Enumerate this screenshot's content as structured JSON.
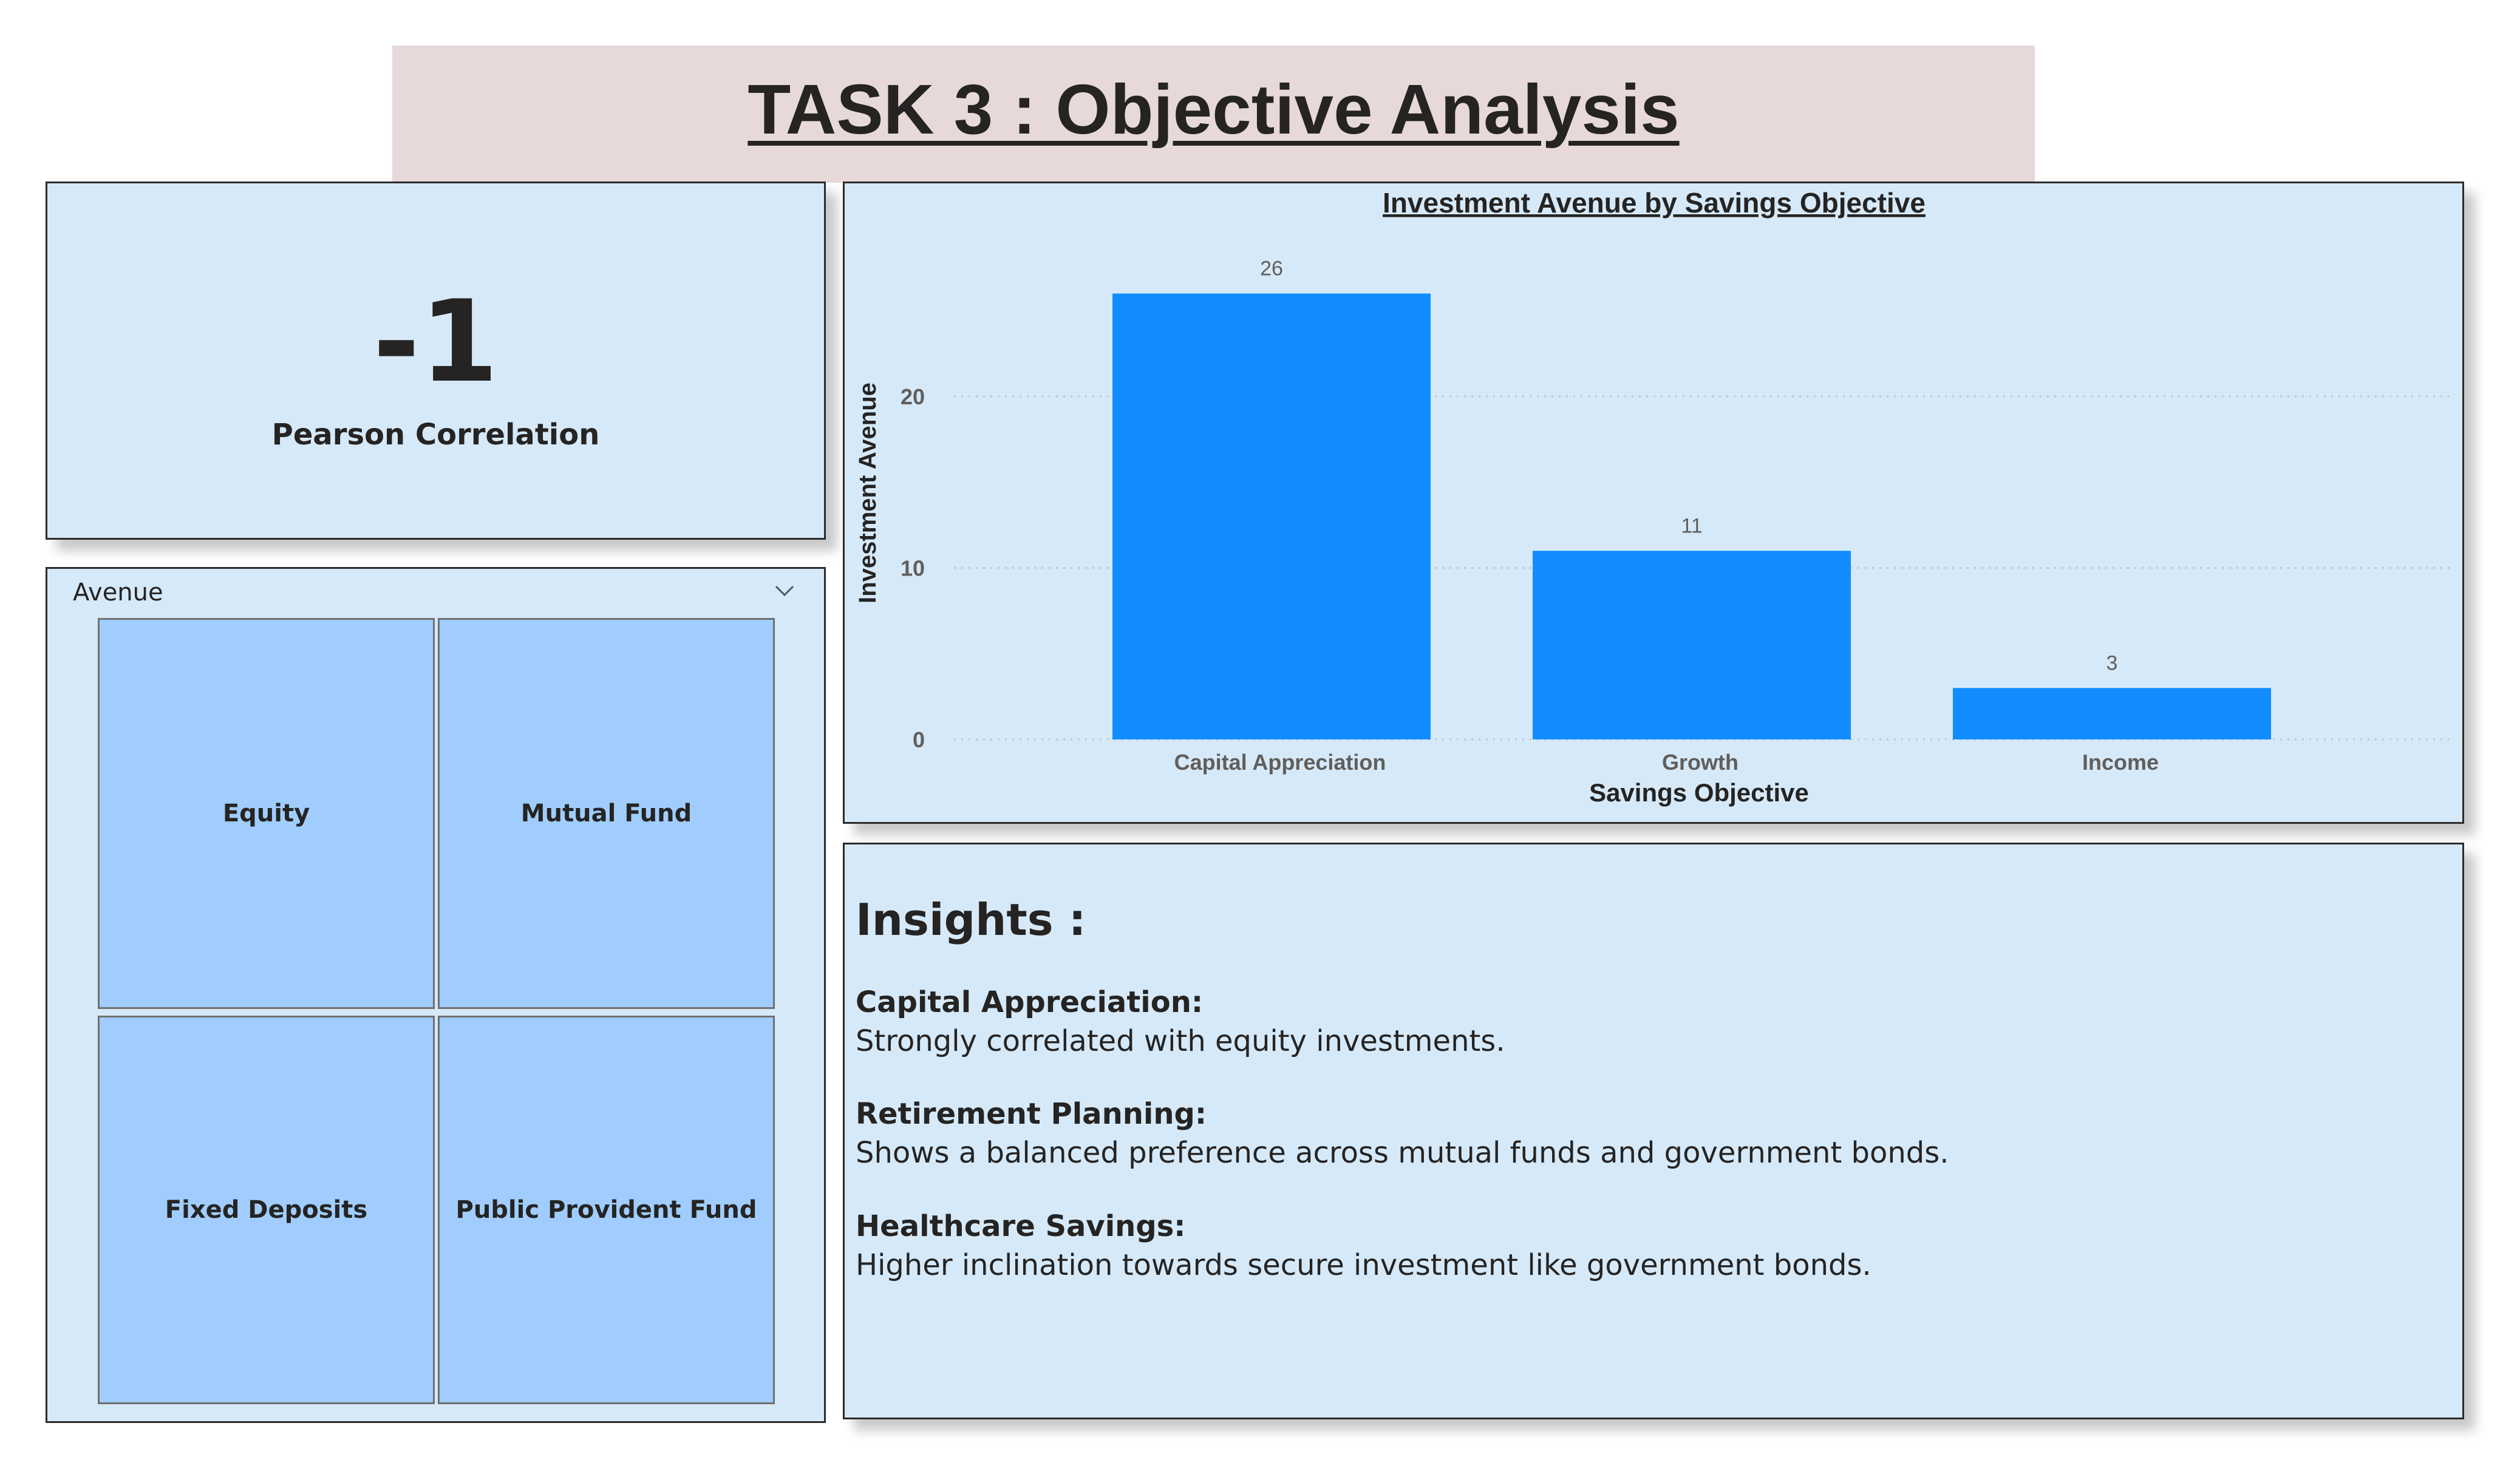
{
  "page": {
    "title": "TASK 3 : Objective Analysis"
  },
  "kpi": {
    "value": "-1",
    "label": "Pearson Correlation"
  },
  "slicer": {
    "header": "Avenue",
    "options": [
      "Equity",
      "Mutual Fund",
      "Fixed Deposits",
      "Public Provident Fund"
    ],
    "chevron_icon": "chevron-down-icon"
  },
  "chart_data": {
    "type": "bar",
    "title": "Investment Avenue by Savings Objective",
    "xlabel": "Savings Objective",
    "ylabel": "Investment Avenue",
    "categories": [
      "Capital Appreciation",
      "Growth",
      "Income"
    ],
    "values": [
      26,
      11,
      3
    ],
    "data_labels": [
      "26",
      "11",
      "3"
    ],
    "yticks": [
      0,
      10,
      20
    ],
    "ylim": [
      0,
      28
    ],
    "grid": true,
    "bar_color": "#118dff"
  },
  "insights": {
    "title": "Insights :",
    "items": [
      {
        "heading": "Capital Appreciation:",
        "text": "Strongly correlated with equity investments."
      },
      {
        "heading": "Retirement Planning:",
        "text": "Shows a balanced preference across mutual funds and government bonds."
      },
      {
        "heading": "Healthcare Savings:",
        "text": "Higher inclination towards secure investment like government bonds."
      }
    ]
  },
  "colors": {
    "card_bg": "#d6e9f8",
    "tile_bg": "#a0cdfd",
    "banner_bg": "#e7d9d9",
    "text": "#252423"
  }
}
